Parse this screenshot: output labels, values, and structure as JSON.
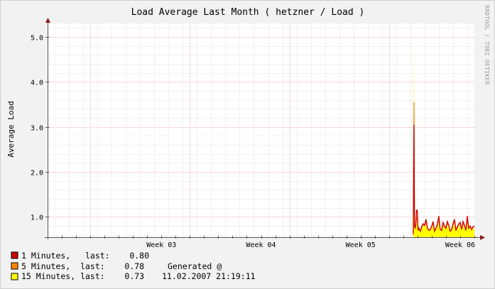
{
  "chart_data": {
    "type": "area",
    "title": "Load Average Last Month ( hetzner / Load )",
    "ylabel": "Average Load",
    "xlabel": "",
    "credit": "RRDTOOL / TOBI OETIKER",
    "ylim": [
      0.55,
      5.3
    ],
    "yticks": [
      1.0,
      2.0,
      3.0,
      4.0,
      5.0
    ],
    "ytick_labels": [
      "1.0",
      "2.0",
      "3.0",
      "4.0",
      "5.0"
    ],
    "xlim": [
      0,
      30
    ],
    "xticks": [
      {
        "x": 8.0,
        "label": "Week 03"
      },
      {
        "x": 15.0,
        "label": "Week 04"
      },
      {
        "x": 22.0,
        "label": "Week 05"
      },
      {
        "x": 29.0,
        "label": "Week 06"
      }
    ],
    "major_grid_x": [
      3.0,
      10.0,
      17.0,
      24.0
    ],
    "grid": true,
    "colors": {
      "background": "#f2f2f2",
      "canvas": "#ffffff",
      "minor_grid": "#e4e4e4",
      "major_grid": "#f0b4b4",
      "axis": "#555555",
      "arrow": "#8b1a1a",
      "series_1min": "#cc0000",
      "series_5min": "#ff8800",
      "series_15min": "#ffff00"
    },
    "series": [
      {
        "name": "1 Minutes",
        "color": "#cc0000",
        "x": [
          25.7,
          25.75,
          25.79,
          25.84,
          25.88,
          25.93,
          25.98,
          26.04,
          26.1,
          26.2,
          26.3,
          26.4,
          26.5,
          26.6,
          26.7,
          26.8,
          26.9,
          27.0,
          27.1,
          27.2,
          27.3,
          27.4,
          27.5,
          27.6,
          27.7,
          27.8,
          27.9,
          28.0,
          28.1,
          28.2,
          28.3,
          28.4,
          28.5,
          28.6,
          28.7,
          28.8,
          28.9,
          29.0,
          29.1,
          29.2,
          29.3,
          29.4,
          29.5,
          29.6,
          29.7,
          29.8,
          29.9,
          30.0
        ],
        "y": [
          0.62,
          3.05,
          0.8,
          0.75,
          0.85,
          1.15,
          1.15,
          0.7,
          0.75,
          0.68,
          0.8,
          0.85,
          0.82,
          0.95,
          0.75,
          0.7,
          0.72,
          0.8,
          0.9,
          0.68,
          0.75,
          0.85,
          1.02,
          0.72,
          0.7,
          0.88,
          0.8,
          0.75,
          0.9,
          0.82,
          0.68,
          0.72,
          0.85,
          0.95,
          0.7,
          0.78,
          0.85,
          0.88,
          0.72,
          0.9,
          0.82,
          0.7,
          1.02,
          0.75,
          0.8,
          0.72,
          0.78,
          0.8
        ]
      },
      {
        "name": "5 Minutes",
        "color": "#ff8800",
        "x": [
          25.7,
          25.75,
          25.79,
          25.84,
          25.88,
          25.93,
          25.98,
          26.04,
          26.1,
          26.2,
          26.3,
          26.4,
          26.5,
          26.6,
          26.7,
          26.8,
          26.9,
          27.0,
          27.1,
          27.2,
          27.3,
          27.4,
          27.5,
          27.6,
          27.7,
          27.8,
          27.9,
          28.0,
          28.1,
          28.2,
          28.3,
          28.4,
          28.5,
          28.6,
          28.7,
          28.8,
          28.9,
          29.0,
          29.1,
          29.2,
          29.3,
          29.4,
          29.5,
          29.6,
          29.7,
          29.8,
          29.9,
          30.0
        ],
        "y": [
          0.6,
          3.55,
          0.78,
          0.74,
          0.82,
          1.0,
          0.95,
          0.72,
          0.73,
          0.68,
          0.77,
          0.82,
          0.8,
          0.88,
          0.74,
          0.7,
          0.71,
          0.78,
          0.85,
          0.69,
          0.74,
          0.82,
          0.92,
          0.72,
          0.7,
          0.84,
          0.78,
          0.74,
          0.85,
          0.8,
          0.69,
          0.71,
          0.82,
          0.88,
          0.7,
          0.76,
          0.82,
          0.84,
          0.72,
          0.85,
          0.8,
          0.7,
          0.93,
          0.74,
          0.78,
          0.72,
          0.77,
          0.78
        ]
      },
      {
        "name": "15 Minutes",
        "color": "#ffff00",
        "x": [
          25.7,
          25.75,
          25.79,
          25.84,
          25.88,
          25.93,
          25.98,
          26.04,
          26.1,
          26.2,
          26.3,
          26.4,
          26.5,
          26.6,
          26.7,
          26.8,
          26.9,
          27.0,
          27.1,
          27.2,
          27.3,
          27.4,
          27.5,
          27.6,
          27.7,
          27.8,
          27.9,
          28.0,
          28.1,
          28.2,
          28.3,
          28.4,
          28.5,
          28.6,
          28.7,
          28.8,
          28.9,
          29.0,
          29.1,
          29.2,
          29.3,
          29.4,
          29.5,
          29.6,
          29.7,
          29.8,
          29.9,
          30.0
        ],
        "y": [
          0.6,
          4.85,
          0.76,
          0.73,
          0.78,
          0.88,
          0.84,
          0.73,
          0.72,
          0.69,
          0.74,
          0.78,
          0.78,
          0.82,
          0.73,
          0.7,
          0.7,
          0.75,
          0.8,
          0.7,
          0.72,
          0.78,
          0.85,
          0.72,
          0.7,
          0.8,
          0.76,
          0.73,
          0.8,
          0.78,
          0.7,
          0.7,
          0.78,
          0.82,
          0.7,
          0.74,
          0.78,
          0.8,
          0.72,
          0.8,
          0.77,
          0.7,
          0.85,
          0.73,
          0.76,
          0.72,
          0.74,
          0.73
        ]
      }
    ]
  },
  "legend": [
    {
      "swatch": "#cc0000",
      "text": "1 Minutes,   last:    0.80"
    },
    {
      "swatch": "#ff8800",
      "text": "5 Minutes,  last:    0.78"
    },
    {
      "swatch": "#ffff00",
      "text": "15 Minutes, last:    0.73"
    }
  ],
  "generated": {
    "label": "Generated @",
    "timestamp": "11.02.2007 21:19:11"
  }
}
